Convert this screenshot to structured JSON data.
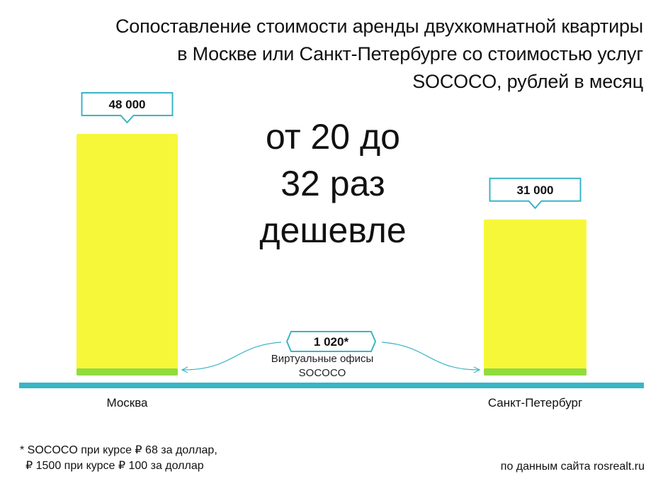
{
  "title_lines": [
    "Сопоставление стоимости аренды двухкомнатной квартиры",
    "в Москве или Санкт-Петербурге со стоимостью услуг",
    "SOCOCO, рублей в месяц"
  ],
  "headline_lines": [
    "от 20 до",
    "32 раз",
    "дешевле"
  ],
  "chart_data": {
    "type": "bar",
    "categories": [
      "Москва",
      "Санкт-Петербург"
    ],
    "series": [
      {
        "values": [
          48000,
          31000
        ],
        "color": "#f7f73a",
        "value_labels": [
          "48 000",
          "31 000"
        ]
      },
      {
        "values": [
          1020,
          1020
        ],
        "color": "#8fdc3f"
      }
    ],
    "annotation": {
      "label": "1 020*",
      "text_lines": [
        "Виртуальные офисы",
        "SOCOCO"
      ]
    },
    "ylim": [
      0,
      48000
    ],
    "grid": false,
    "colors": {
      "baseline": "#3ab5c5",
      "callout_border": "#3ab5c5",
      "arrow": "#3ab5c5"
    }
  },
  "footnote_lines": [
    "* SOCOCO при курсе ₽ 68 за доллар,",
    "₽ 1500 при курсе ₽ 100 за доллар"
  ],
  "source": "по данным сайта rosrealt.ru"
}
